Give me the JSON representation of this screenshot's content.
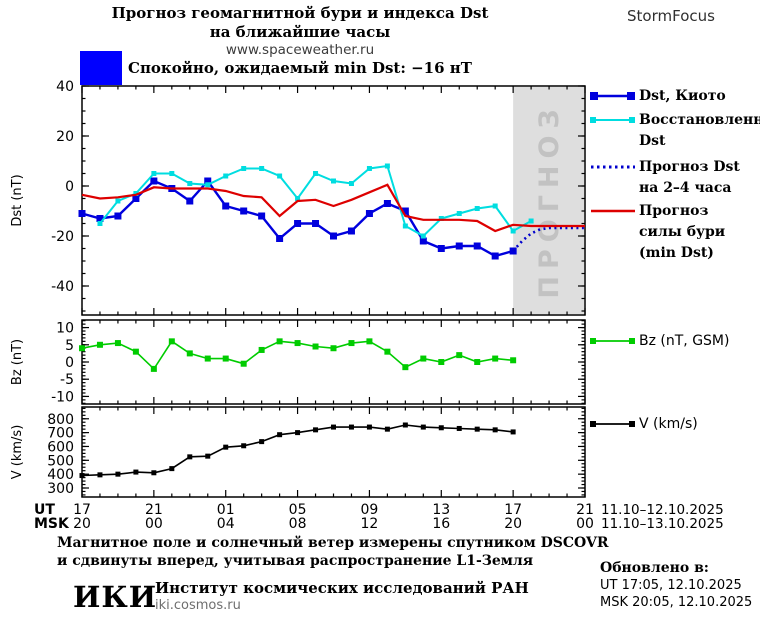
{
  "header": {
    "title_line1": "Прогноз геомагнитной бури и индекса Dst",
    "title_line2": "на ближайшие часы",
    "site": "www.spaceweather.ru",
    "brand": "StormFocus"
  },
  "status": {
    "label": "Спокойно, ожидаемый min Dst: −16 нТ",
    "swatch_color": "#0000ff"
  },
  "chart_data": [
    {
      "type": "line",
      "ylabel": "Dst (nT)",
      "yticks": [
        40,
        20,
        0,
        -20,
        -40
      ],
      "ylim": [
        -51.6,
        40
      ],
      "yminor_step": 5,
      "xlim": [
        0,
        28
      ],
      "x_unit": "hours from 17:00 UT 11.10.2025",
      "forecast_region": {
        "start": 24,
        "end": 28,
        "label": "ПРОГНОЗ",
        "fill": "#dedede",
        "label_color": "#c2c2c2"
      },
      "series": [
        {
          "key": "dst-kyoto",
          "name": "Dst, Киото",
          "color": "#0000dd",
          "style": "solid",
          "width": 2.4,
          "marker_size": 7,
          "x_start": 0,
          "step": 1,
          "values": [
            -11,
            -13,
            -12,
            -5,
            2,
            -1,
            -6,
            2,
            -8,
            -10,
            -12,
            -21,
            -15,
            -15,
            -20,
            -18,
            -11,
            -7,
            -10,
            -22,
            -25,
            -24,
            -24,
            -28,
            -26
          ]
        },
        {
          "key": "restored-dst",
          "name": "Восстановленный Dst",
          "color": "#00dde0",
          "style": "solid",
          "width": 2,
          "marker_size": 5,
          "x_start": 1,
          "step": 1,
          "values": [
            -15,
            -6,
            -3,
            5,
            5,
            1,
            0.5,
            4,
            7,
            7,
            4,
            -5,
            5,
            2,
            1,
            7,
            8,
            -16,
            -20,
            -13,
            -11,
            -9,
            -8,
            -18,
            -14
          ]
        },
        {
          "key": "dst-forecast-dotted",
          "name": "Прогноз Dst на 2–4 часа",
          "color": "#0000cc",
          "style": "dotted",
          "width": 2.6,
          "marker_size": 0,
          "x_start": 24,
          "step": 0.5,
          "values": [
            -26,
            -22,
            -19,
            -17.3,
            -16.8,
            -16.8,
            -16.8,
            -16.8,
            -16.8
          ]
        },
        {
          "key": "storm-forecast",
          "name": "Прогноз силы бури (min Dst)",
          "color": "#dd0000",
          "style": "solid",
          "width": 2.2,
          "marker_size": 0,
          "x_start": 0,
          "step": 1,
          "values": [
            -3.5,
            -5,
            -4.5,
            -3.5,
            -0.5,
            -1,
            -1,
            -1,
            -2,
            -4,
            -4.5,
            -12,
            -6,
            -5.5,
            -8,
            -5.5,
            -2.5,
            0.5,
            -12,
            -13.5,
            -13.5,
            -13.5,
            -14,
            -18,
            -15.5,
            -16,
            -16,
            -16,
            -16
          ]
        }
      ]
    },
    {
      "type": "line",
      "ylabel": "Bz (nT)",
      "yticks": [
        10,
        5,
        0,
        -5,
        -10
      ],
      "ylim": [
        -12.2,
        12.2
      ],
      "yminor_step": 1,
      "xlim": [
        0,
        28
      ],
      "series": [
        {
          "key": "bz",
          "name": "Bz (nT, GSM)",
          "color": "#00cc00",
          "style": "solid",
          "width": 1.6,
          "marker_size": 6,
          "x_start": 0,
          "step": 1,
          "values": [
            4,
            5,
            5.5,
            3,
            -2,
            6,
            2.5,
            1,
            1,
            -0.5,
            3.5,
            6,
            5.5,
            4.5,
            4,
            5.5,
            6,
            3,
            -1.5,
            1,
            0,
            2,
            0,
            1,
            0.5
          ]
        }
      ]
    },
    {
      "type": "line",
      "ylabel": "V (km/s)",
      "yticks": [
        800,
        700,
        600,
        500,
        400,
        300
      ],
      "ylim": [
        235,
        885
      ],
      "yminor_step": 25,
      "xlim": [
        0,
        28
      ],
      "series": [
        {
          "key": "v",
          "name": "V (km/s)",
          "color": "#000000",
          "style": "solid",
          "width": 1.6,
          "marker_size": 5,
          "x_start": 0,
          "step": 1,
          "values": [
            390,
            395,
            400,
            415,
            410,
            440,
            525,
            530,
            595,
            605,
            635,
            685,
            700,
            720,
            740,
            740,
            740,
            725,
            755,
            740,
            735,
            730,
            725,
            720,
            705
          ]
        }
      ]
    }
  ],
  "x_axis": {
    "tick_hours": [
      0,
      4,
      8,
      12,
      16,
      20,
      24,
      28
    ],
    "rows": [
      {
        "label": "UT",
        "ticks": [
          "17",
          "21",
          "01",
          "05",
          "09",
          "13",
          "17",
          "21"
        ],
        "date_range": "11.10–12.10.2025"
      },
      {
        "label": "MSK",
        "ticks": [
          "20",
          "00",
          "04",
          "08",
          "12",
          "16",
          "20",
          "00"
        ],
        "date_range": "11.10–13.10.2025"
      }
    ]
  },
  "legend": {
    "main": [
      {
        "lines": [
          "Dst, Киото"
        ],
        "color": "#0000dd"
      },
      {
        "lines": [
          "Восстановленный",
          "Dst"
        ],
        "color": "#00dde0"
      },
      {
        "lines": [
          "Прогноз Dst",
          "на 2–4 часа"
        ],
        "color": "#0000cc"
      },
      {
        "lines": [
          "Прогноз",
          "силы бури",
          "(min Dst)"
        ],
        "color": "#dd0000"
      }
    ],
    "bz": {
      "lines": [
        "Bz (nT, GSM)"
      ],
      "color": "#00cc00"
    },
    "v": {
      "lines": [
        "V (km/s)"
      ],
      "color": "#000000"
    }
  },
  "footer": {
    "note_line1": "Магнитное поле и солнечный ветер измерены спутником DSCOVR",
    "note_line2": "и сдвинуты вперед, учитывая распространение L1-Земля",
    "logo": "ИКИ",
    "institute": "Институт космических исследований РАН",
    "site": "iki.cosmos.ru",
    "updated": {
      "label": "Обновлено в:",
      "ut": "UT  17:05, 12.10.2025",
      "msk": "MSK 20:05, 12.10.2025"
    }
  }
}
